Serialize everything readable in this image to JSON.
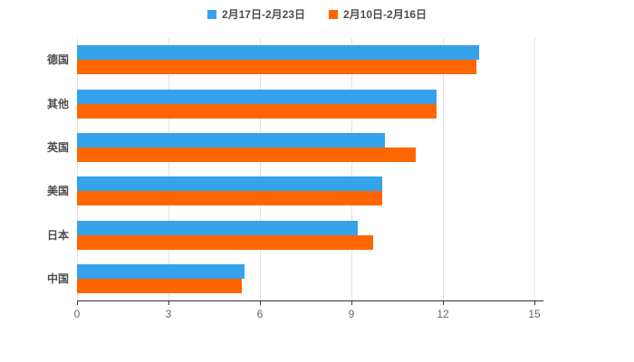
{
  "chart_data": {
    "type": "bar",
    "orientation": "horizontal",
    "title": "",
    "xlabel": "",
    "ylabel": "",
    "legend_position": "top",
    "grid": true,
    "categories": [
      "德国",
      "其他",
      "英国",
      "美国",
      "日本",
      "中国"
    ],
    "series": [
      {
        "name": "2月17日-2月23日",
        "color": "#36A2EB",
        "values": [
          13.2,
          11.8,
          10.1,
          10.0,
          9.2,
          5.5
        ]
      },
      {
        "name": "2月10日-2月16日",
        "color": "#FF6600",
        "values": [
          13.1,
          11.8,
          11.1,
          10.0,
          9.7,
          5.4
        ]
      }
    ],
    "x_ticks": [
      0,
      3,
      6,
      9,
      12,
      15
    ],
    "xlim": [
      0,
      15
    ]
  },
  "colors": {
    "background": "#ffffff",
    "gridline": "#e3e3e3",
    "axis": "#333333",
    "tick_label": "#666666",
    "category_label": "#4d4d4d"
  }
}
